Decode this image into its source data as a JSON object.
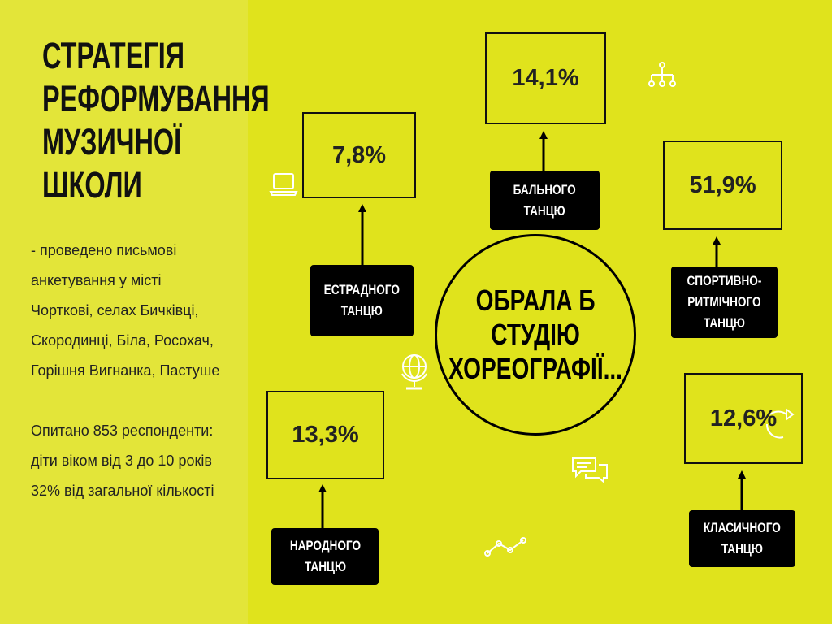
{
  "title": {
    "lines": [
      "СТРАТЕГІЯ",
      "РЕФОРМУВАННЯ",
      "МУЗИЧНОЇ",
      "ШКОЛИ"
    ]
  },
  "body": {
    "paragraph1": [
      "- проведено письмові",
      "анкетування у місті",
      "Чорткові, селах Бичківці,",
      "Скородинці, Біла, Росохач,",
      "Горішня Вигнанка, Пастуше"
    ],
    "paragraph2": [
      "Опитано 853 респонденти:",
      "діти віком від 3 до 10 років",
      "32% від загальної кількості"
    ]
  },
  "center": {
    "text": "ОБРАЛА Б\nСТУДІЮ\nХОРЕОГРАФІЇ..."
  },
  "items": [
    {
      "value": "7,8%",
      "label": "ЕСТРАДНОГО\nТАНЦЮ"
    },
    {
      "value": "14,1%",
      "label": "БАЛЬНОГО\nТАНЦЮ"
    },
    {
      "value": "51,9%",
      "label": "СПОРТИВНО-\nРИТМІЧНОГО\nТАНЦЮ"
    },
    {
      "value": "13,3%",
      "label": "НАРОДНОГО\nТАНЦЮ"
    },
    {
      "value": "12,6%",
      "label": "КЛАСИЧНОГО\nТАНЦЮ"
    }
  ],
  "icons": [
    "laptop-icon",
    "hierarchy-icon",
    "globe-icon",
    "refresh-arrow-icon",
    "chat-bubbles-icon",
    "line-chart-icon"
  ],
  "colors": {
    "background": "#e0e31c",
    "left_panel": "#e3e539",
    "label_bg": "#000000",
    "text": "#111111"
  }
}
